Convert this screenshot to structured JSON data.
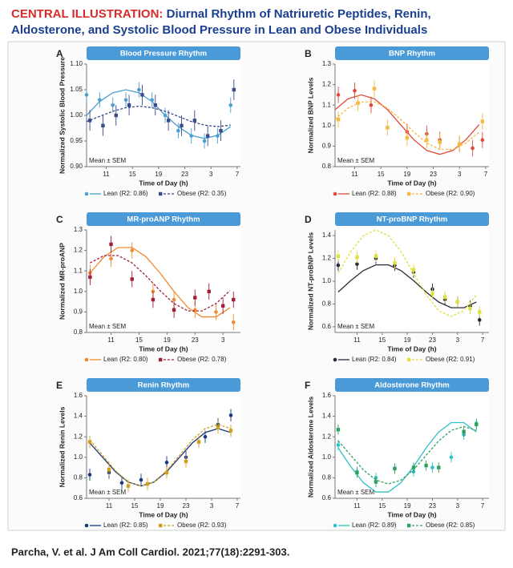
{
  "header": {
    "label": "CENTRAL ILLUSTRATION:",
    "title_lines": [
      "Diurnal Rhythm of Natriuretic Peptides, Renin,",
      "Aldosterone, and Systolic Blood Pressure in Lean and Obese Individuals"
    ]
  },
  "citation": "Parcha, V. et al. J Am Coll Cardiol. 2021;77(18):2291-303.",
  "chart_data": [
    {
      "type": "line",
      "label": "A",
      "title": "Blood Pressure Rhythm",
      "xlabel": "Time of Day (h)",
      "ylabel": "Normalized Systolic Blood Pressure",
      "note": "Mean ± SEM",
      "grid": false,
      "xlim": [
        8,
        31.5
      ],
      "xticks": [
        11,
        15,
        19,
        23,
        {
          "value": 27,
          "label": "3"
        },
        {
          "value": 31,
          "label": "7"
        }
      ],
      "ylim": [
        0.9,
        1.1
      ],
      "yticks": [
        {
          "value": 0.9,
          "label": "0.90"
        },
        0.95,
        {
          "value": 1.0,
          "label": "1.00"
        },
        1.05,
        {
          "value": 1.1,
          "label": "1.10"
        }
      ],
      "x_fit": [
        8,
        10,
        12,
        14,
        16,
        18,
        20,
        22,
        24,
        26,
        28,
        30
      ],
      "series": [
        {
          "name": "Lean (R2: 0.86)",
          "color": "#4a9fd0",
          "line_style": "solid",
          "marker": "circle",
          "x": [
            8,
            10,
            12,
            14,
            16,
            18,
            20,
            22,
            24,
            26,
            28,
            30
          ],
          "values": [
            1.04,
            1.03,
            1.02,
            1.03,
            1.05,
            1.03,
            1.0,
            0.97,
            0.96,
            0.95,
            0.96,
            1.02
          ],
          "errors": [
            0.015,
            0.015,
            0.015,
            0.015,
            0.015,
            0.015,
            0.015,
            0.015,
            0.015,
            0.015,
            0.015,
            0.015
          ],
          "fit": [
            1.0,
            1.027,
            1.044,
            1.05,
            1.044,
            1.027,
            1.0,
            0.978,
            0.961,
            0.955,
            0.961,
            0.978
          ]
        },
        {
          "name": "Obese (R2: 0.35)",
          "color": "#3a4a8a",
          "line_style": "dashed",
          "marker": "square",
          "x": [
            8.5,
            10.5,
            12.5,
            14.5,
            16.5,
            18.5,
            20.5,
            22.5,
            24.5,
            26.5,
            28.5,
            30.5
          ],
          "values": [
            0.99,
            0.98,
            1.0,
            1.02,
            1.04,
            1.02,
            0.99,
            0.98,
            0.99,
            0.96,
            0.97,
            1.05
          ],
          "errors": [
            0.02,
            0.02,
            0.02,
            0.02,
            0.02,
            0.02,
            0.02,
            0.02,
            0.02,
            0.02,
            0.02,
            0.02
          ],
          "fit": [
            0.988,
            0.998,
            1.008,
            1.015,
            1.018,
            1.015,
            1.008,
            0.998,
            0.988,
            0.981,
            0.978,
            0.981
          ]
        }
      ]
    },
    {
      "type": "line",
      "label": "B",
      "title": "BNP Rhythm",
      "xlabel": "Time of Day (h)",
      "ylabel": "Normalized BNP Levels",
      "note": "Mean ± SEM",
      "grid": false,
      "xlim": [
        8,
        31.5
      ],
      "xticks": [
        11,
        15,
        19,
        23,
        {
          "value": 27,
          "label": "3"
        },
        {
          "value": 31,
          "label": "7"
        }
      ],
      "ylim": [
        0.8,
        1.3
      ],
      "yticks": [
        0.8,
        0.9,
        {
          "value": 1.0,
          "label": "1.0"
        },
        1.1,
        1.2,
        1.3
      ],
      "x_fit": [
        8,
        10,
        12,
        14,
        16,
        18,
        20,
        22,
        24,
        26,
        28,
        30
      ],
      "series": [
        {
          "name": "Lean (R2: 0.88)",
          "color": "#e04a3a",
          "line_style": "solid",
          "marker": "circle",
          "x": [
            8.5,
            11,
            13.5,
            19,
            22,
            24,
            27,
            29,
            30.5
          ],
          "values": [
            1.15,
            1.17,
            1.1,
            0.97,
            0.96,
            0.93,
            0.91,
            0.89,
            0.93
          ],
          "errors": [
            0.04,
            0.04,
            0.04,
            0.04,
            0.04,
            0.04,
            0.04,
            0.04,
            0.04
          ],
          "fit": [
            1.078,
            1.131,
            1.15,
            1.131,
            1.078,
            1.005,
            0.932,
            0.879,
            0.86,
            0.879,
            0.932,
            1.005
          ]
        },
        {
          "name": "Obese (R2: 0.90)",
          "color": "#f5b940",
          "line_style": "dashed",
          "marker": "square",
          "x": [
            8.5,
            11.5,
            14,
            16,
            19,
            22,
            24,
            27,
            30.5
          ],
          "values": [
            1.03,
            1.11,
            1.18,
            0.99,
            0.94,
            0.93,
            0.92,
            0.91,
            1.02
          ],
          "errors": [
            0.04,
            0.04,
            0.04,
            0.04,
            0.04,
            0.04,
            0.04,
            0.04,
            0.04
          ],
          "fit": [
            1.031,
            1.085,
            1.116,
            1.116,
            1.085,
            1.031,
            0.969,
            0.915,
            0.884,
            0.884,
            0.915,
            0.969
          ]
        }
      ]
    },
    {
      "type": "line",
      "label": "C",
      "title": "MR-proANP Rhythm",
      "xlabel": "Time of Day (h)",
      "ylabel": "Normalized MR-proANP",
      "note": "Mean ± SEM",
      "grid": false,
      "xlim": [
        7.5,
        29.5
      ],
      "xticks": [
        11,
        15,
        19,
        23,
        {
          "value": 27,
          "label": "3"
        }
      ],
      "ylim": [
        0.8,
        1.3
      ],
      "yticks": [
        0.8,
        0.9,
        {
          "value": 1.0,
          "label": "1.0"
        },
        1.1,
        1.2,
        1.3
      ],
      "x_fit": [
        8,
        10,
        12,
        14,
        16,
        18,
        20,
        22,
        24,
        26,
        28
      ],
      "series": [
        {
          "name": "Lean (R2: 0.80)",
          "color": "#f08a30",
          "line_style": "solid",
          "marker": "circle",
          "x": [
            8,
            11,
            14,
            17,
            20,
            23,
            26,
            28.5
          ],
          "values": [
            1.09,
            1.16,
            1.2,
            1.0,
            0.96,
            0.91,
            0.9,
            0.85
          ],
          "errors": [
            0.04,
            0.04,
            0.04,
            0.04,
            0.04,
            0.04,
            0.04,
            0.04
          ],
          "fit": [
            1.09,
            1.169,
            1.214,
            1.214,
            1.169,
            1.09,
            1.0,
            0.921,
            0.876,
            0.876,
            0.921
          ]
        },
        {
          "name": "Obese (R2: 0.78)",
          "color": "#a0203a",
          "line_style": "dashed",
          "marker": "square",
          "x": [
            8,
            11,
            14,
            17,
            20,
            23,
            25,
            27,
            28.5
          ],
          "values": [
            1.07,
            1.23,
            1.06,
            0.96,
            0.91,
            0.97,
            1.0,
            0.93,
            0.96
          ],
          "errors": [
            0.04,
            0.04,
            0.04,
            0.04,
            0.04,
            0.04,
            0.04,
            0.04,
            0.04
          ],
          "fit": [
            1.139,
            1.175,
            1.175,
            1.139,
            1.076,
            1.004,
            0.941,
            0.905,
            0.905,
            0.941,
            1.004
          ]
        }
      ]
    },
    {
      "type": "line",
      "label": "D",
      "title": "NT-proBNP Rhythm",
      "xlabel": "Time of Day (h)",
      "ylabel": "Normalized NT-proBNP Levels",
      "note": "Mean ± SEM",
      "grid": false,
      "xlim": [
        7.5,
        32
      ],
      "xticks": [
        11,
        15,
        19,
        23,
        {
          "value": 27,
          "label": "3"
        },
        {
          "value": 31,
          "label": "7"
        }
      ],
      "ylim": [
        0.55,
        1.45
      ],
      "yticks": [
        0.6,
        0.8,
        {
          "value": 1.0,
          "label": "1.0"
        },
        1.2,
        1.4
      ],
      "x_fit": [
        8,
        10,
        12,
        14,
        16,
        18,
        20,
        22,
        24,
        26,
        28,
        30
      ],
      "series": [
        {
          "name": "Lean (R2: 0.84)",
          "color": "#2a2a3a",
          "line_style": "solid",
          "marker": "circle",
          "x": [
            8,
            11,
            14,
            17,
            20,
            23,
            25,
            27,
            29,
            30.5
          ],
          "values": [
            1.14,
            1.15,
            1.2,
            1.14,
            1.08,
            0.93,
            0.84,
            0.82,
            0.78,
            0.66
          ],
          "errors": [
            0.05,
            0.05,
            0.05,
            0.05,
            0.05,
            0.05,
            0.05,
            0.05,
            0.05,
            0.05
          ],
          "fit": [
            0.905,
            1.005,
            1.093,
            1.143,
            1.143,
            1.093,
            1.005,
            0.905,
            0.817,
            0.767,
            0.767,
            0.817
          ]
        },
        {
          "name": "Obese (R2: 0.91)",
          "color": "#e0e040",
          "line_style": "dashed",
          "marker": "square",
          "x": [
            8,
            11,
            14,
            17,
            20,
            23,
            25,
            27,
            29,
            30.5
          ],
          "values": [
            1.22,
            1.21,
            1.22,
            1.16,
            1.1,
            0.89,
            0.86,
            0.82,
            0.76,
            0.73
          ],
          "errors": [
            0.05,
            0.05,
            0.05,
            0.05,
            0.05,
            0.05,
            0.05,
            0.05,
            0.05,
            0.05
          ],
          "fit": [
            1.07,
            1.26,
            1.399,
            1.45,
            1.399,
            1.26,
            1.07,
            0.88,
            0.741,
            0.69,
            0.741,
            0.88
          ]
        }
      ]
    },
    {
      "type": "line",
      "label": "E",
      "title": "Renin Rhythm",
      "xlabel": "Time of Day (h)",
      "ylabel": "Normalized Renin Levels",
      "note": "Mean ± SEM",
      "grid": false,
      "xlim": [
        7.5,
        31.5
      ],
      "xticks": [
        11,
        15,
        19,
        23,
        {
          "value": 27,
          "label": "3"
        },
        {
          "value": 31,
          "label": "7"
        }
      ],
      "ylim": [
        0.6,
        1.6
      ],
      "yticks": [
        0.6,
        0.8,
        {
          "value": 1.0,
          "label": "1.0"
        },
        1.2,
        1.4,
        1.6
      ],
      "x_fit": [
        8,
        10,
        12,
        14,
        16,
        18,
        20,
        22,
        24,
        26,
        28,
        30
      ],
      "series": [
        {
          "name": "Lean (R2: 0.85)",
          "color": "#1a3a7a",
          "line_style": "solid",
          "marker": "circle",
          "x": [
            8,
            11,
            13,
            16,
            20,
            23,
            26,
            28,
            30
          ],
          "values": [
            0.83,
            0.85,
            0.75,
            0.78,
            0.95,
            1.0,
            1.2,
            1.32,
            1.41
          ],
          "errors": [
            0.06,
            0.06,
            0.06,
            0.06,
            0.06,
            0.06,
            0.06,
            0.06,
            0.06
          ],
          "fit": [
            1.14,
            1.0,
            0.86,
            0.758,
            0.72,
            0.758,
            0.86,
            1.0,
            1.14,
            1.242,
            1.28,
            1.242
          ]
        },
        {
          "name": "Obese (R2: 0.93)",
          "color": "#d0a020",
          "line_style": "dashed",
          "marker": "square",
          "x": [
            8,
            11,
            14,
            17,
            20,
            23,
            25,
            28,
            30
          ],
          "values": [
            1.15,
            0.88,
            0.72,
            0.74,
            0.85,
            0.96,
            1.15,
            1.29,
            1.26
          ],
          "errors": [
            0.06,
            0.06,
            0.06,
            0.06,
            0.06,
            0.06,
            0.06,
            0.06,
            0.06
          ],
          "fit": [
            1.17,
            1.02,
            0.87,
            0.76,
            0.72,
            0.76,
            0.87,
            1.02,
            1.17,
            1.28,
            1.32,
            1.28
          ]
        }
      ]
    },
    {
      "type": "line",
      "label": "F",
      "title": "Aldosterone Rhythm",
      "xlabel": "Time of Day (h)",
      "ylabel": "Normalized Aldosterone Levels",
      "note": "Mean ± SEM",
      "grid": false,
      "xlim": [
        7.5,
        32
      ],
      "xticks": [
        11,
        15,
        19,
        23,
        {
          "value": 27,
          "label": "3"
        },
        {
          "value": 31,
          "label": "7"
        }
      ],
      "ylim": [
        0.6,
        1.6
      ],
      "yticks": [
        0.6,
        0.8,
        {
          "value": 1.0,
          "label": "1.0"
        },
        1.2,
        1.4,
        1.6
      ],
      "x_fit": [
        8,
        10,
        12,
        14,
        16,
        18,
        20,
        22,
        24,
        26,
        28,
        30
      ],
      "series": [
        {
          "name": "Lean (R2: 0.89)",
          "color": "#30c0c8",
          "line_style": "solid",
          "marker": "circle",
          "x": [
            8,
            11,
            14,
            17,
            20,
            23,
            26,
            28,
            30
          ],
          "values": [
            1.12,
            0.86,
            0.8,
            0.89,
            0.86,
            0.9,
            1.0,
            1.22,
            1.33
          ],
          "errors": [
            0.05,
            0.05,
            0.05,
            0.05,
            0.05,
            0.05,
            0.05,
            0.05,
            0.05
          ],
          "fit": [
            1.091,
            0.909,
            0.753,
            0.662,
            0.662,
            0.753,
            0.909,
            1.091,
            1.247,
            1.338,
            1.338,
            1.247
          ]
        },
        {
          "name": "Obese (R2: 0.85)",
          "color": "#30a060",
          "line_style": "dashed",
          "marker": "square",
          "x": [
            8,
            11,
            14,
            17,
            20,
            22,
            24,
            28,
            30
          ],
          "values": [
            1.27,
            0.85,
            0.76,
            0.89,
            0.9,
            0.92,
            0.9,
            1.25,
            1.32
          ],
          "errors": [
            0.05,
            0.05,
            0.05,
            0.05,
            0.05,
            0.05,
            0.05,
            0.05,
            0.05
          ],
          "fit": [
            1.16,
            1.02,
            0.878,
            0.778,
            0.74,
            0.778,
            0.878,
            1.02,
            1.16,
            1.262,
            1.3,
            1.262
          ]
        }
      ]
    }
  ]
}
